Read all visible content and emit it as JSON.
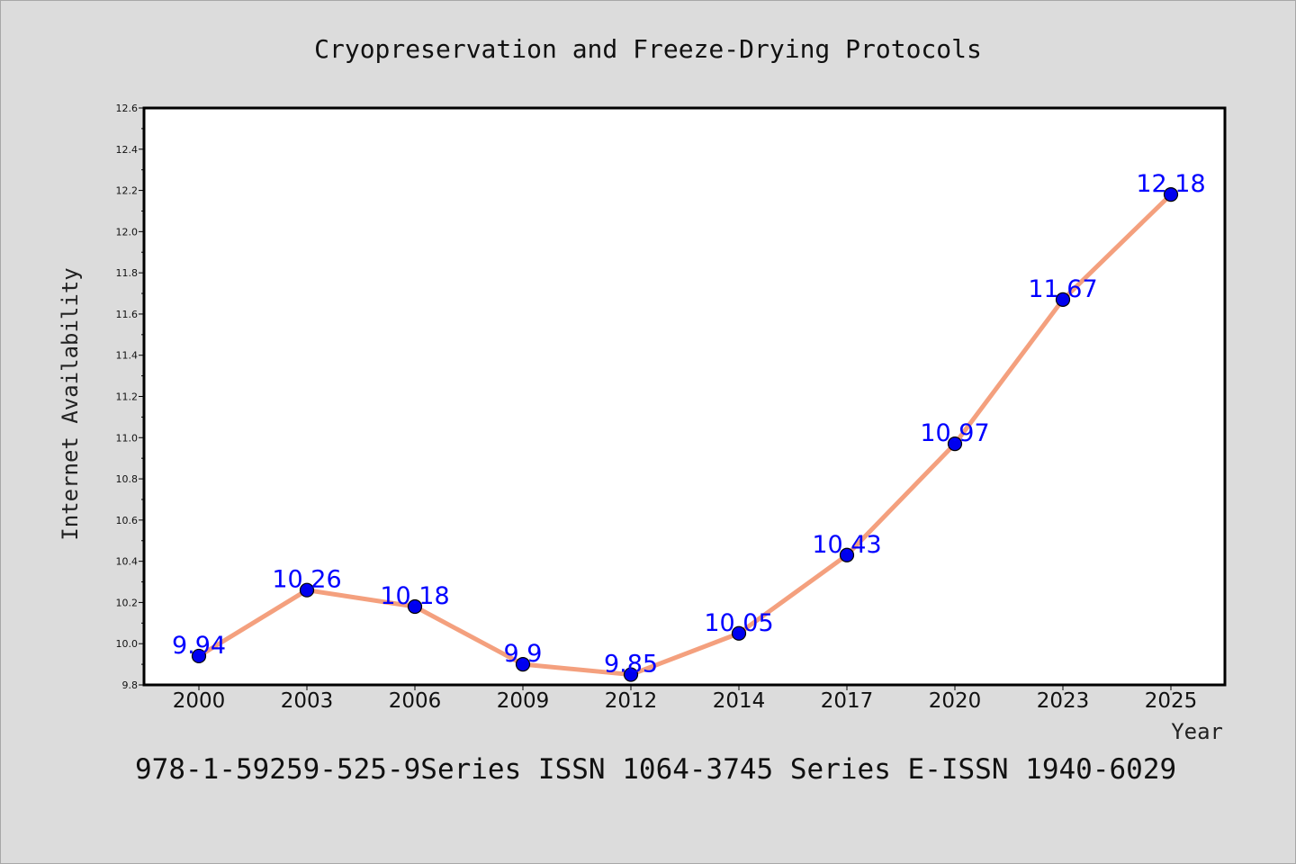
{
  "chart_data": {
    "type": "line",
    "title": "Cryopreservation and Freeze-Drying Protocols",
    "xlabel": "Year",
    "ylabel": "Internet Availability",
    "categories": [
      "2000",
      "2003",
      "2006",
      "2009",
      "2012",
      "2014",
      "2017",
      "2020",
      "2023",
      "2025"
    ],
    "values": [
      9.94,
      10.26,
      10.18,
      9.9,
      9.85,
      10.05,
      10.43,
      10.97,
      11.67,
      12.18
    ],
    "data_labels": [
      "9.94",
      "10.26",
      "10.18",
      "9.9",
      "9.85",
      "10.05",
      "10.43",
      "10.97",
      "11.67",
      "12.18"
    ],
    "ylim": [
      9.8,
      12.6
    ],
    "yticks": [
      "9.8",
      "10.0",
      "10.2",
      "10.4",
      "10.6",
      "10.8",
      "11.0",
      "11.2",
      "11.4",
      "11.6",
      "11.8",
      "12.0",
      "12.2",
      "12.4",
      "12.6"
    ],
    "grid": false,
    "line_color": "#f4a07e",
    "marker_color": "#0000ee",
    "label_color": "#0000ff"
  },
  "footer": {
    "text": "978-1-59259-525-9Series ISSN 1064-3745 Series E-ISSN 1940-6029"
  }
}
